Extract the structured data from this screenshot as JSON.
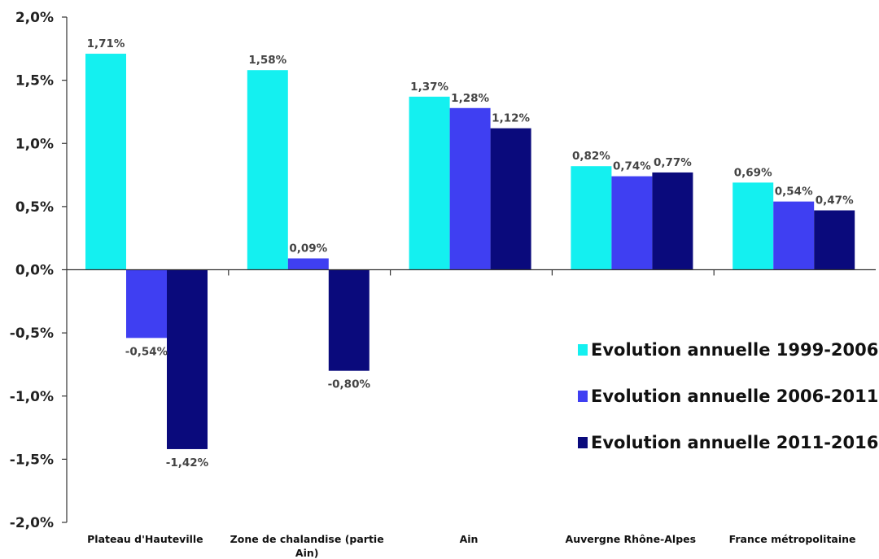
{
  "chart_data": {
    "type": "bar",
    "categories": [
      [
        "Plateau d'Hauteville"
      ],
      [
        "Zone de chalandise (partie",
        "Ain)"
      ],
      [
        "Ain"
      ],
      [
        "Auvergne Rhône-Alpes"
      ],
      [
        "France métropolitaine"
      ]
    ],
    "series": [
      {
        "name": "Evolution annuelle 1999-2006",
        "color": "#14F0F0",
        "values": [
          1.71,
          1.58,
          1.37,
          0.82,
          0.69
        ],
        "labels": [
          "1,71%",
          "1,58%",
          "1,37%",
          "0,82%",
          "0,69%"
        ]
      },
      {
        "name": "Evolution annuelle 2006-2011",
        "color": "#3F3FF2",
        "values": [
          -0.54,
          0.09,
          1.28,
          0.74,
          0.54
        ],
        "labels": [
          "-0,54%",
          "0,09%",
          "1,28%",
          "0,74%",
          "0,54%"
        ]
      },
      {
        "name": "Evolution annuelle 2011-2016",
        "color": "#0A0A7C",
        "values": [
          -1.42,
          -0.8,
          1.12,
          0.77,
          0.47
        ],
        "labels": [
          "-1,42%",
          "-0,80%",
          "1,12%",
          "0,77%",
          "0,47%"
        ]
      }
    ],
    "yticks": [
      2.0,
      1.5,
      1.0,
      0.5,
      0.0,
      -0.5,
      -1.0,
      -1.5,
      -2.0
    ],
    "ytick_labels": [
      "2,0%",
      "1,5%",
      "1,0%",
      "0,5%",
      "0,0%",
      "-0,5%",
      "-1,0%",
      "-1,5%",
      "-2,0%"
    ],
    "ylim": [
      -2.0,
      2.0
    ],
    "title": "",
    "xlabel": "",
    "ylabel": "",
    "grid": false,
    "legend_position": "right"
  }
}
